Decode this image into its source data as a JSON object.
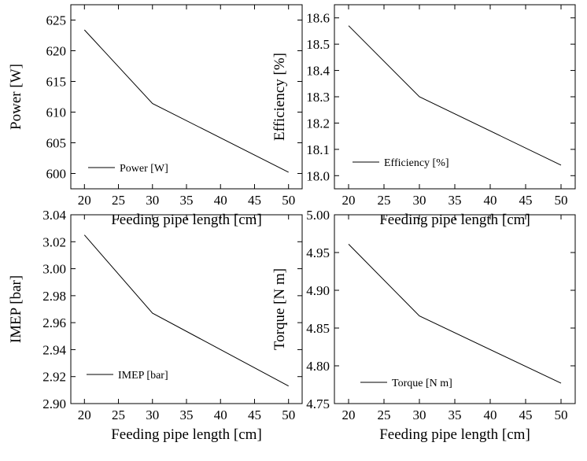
{
  "chart_data": [
    {
      "type": "line",
      "title": "",
      "xlabel": "Feeding pipe length [cm]",
      "ylabel": "Power [W]",
      "legend": "Power [W]",
      "legend_position": "bottom-left",
      "xlim": [
        18,
        52
      ],
      "ylim": [
        597.5,
        627.5
      ],
      "xticks": [
        20,
        25,
        30,
        35,
        40,
        45,
        50
      ],
      "yticks": [
        600,
        605,
        610,
        615,
        620,
        625
      ],
      "x": [
        20,
        30,
        50
      ],
      "series": [
        {
          "name": "Power [W]",
          "values": [
            623.4,
            611.4,
            600.2
          ]
        }
      ]
    },
    {
      "type": "line",
      "title": "",
      "xlabel": "Feeding pipe length [cm]",
      "ylabel": "Efficiency [%]",
      "legend": "Efficiency [%]",
      "legend_position": "bottom-left",
      "xlim": [
        18,
        52
      ],
      "ylim": [
        17.95,
        18.65
      ],
      "xticks": [
        20,
        25,
        30,
        35,
        40,
        45,
        50
      ],
      "yticks": [
        "18.0",
        "18.1",
        "18.2",
        "18.3",
        "18.4",
        "18.5",
        "18.6"
      ],
      "x": [
        20,
        30,
        50
      ],
      "series": [
        {
          "name": "Efficiency [%]",
          "values": [
            18.57,
            18.3,
            18.04
          ]
        }
      ]
    },
    {
      "type": "line",
      "title": "",
      "xlabel": "Feeding pipe length [cm]",
      "ylabel": "IMEP [bar]",
      "legend": "IMEP [bar]",
      "legend_position": "bottom-left",
      "xlim": [
        18,
        52
      ],
      "ylim": [
        2.9,
        3.04
      ],
      "xticks": [
        20,
        25,
        30,
        35,
        40,
        45,
        50
      ],
      "yticks": [
        "2.90",
        "2.92",
        "2.94",
        "2.96",
        "2.98",
        "3.00",
        "3.02",
        "3.04"
      ],
      "x": [
        20,
        30,
        50
      ],
      "series": [
        {
          "name": "IMEP [bar]",
          "values": [
            3.025,
            2.967,
            2.913
          ]
        }
      ]
    },
    {
      "type": "line",
      "title": "",
      "xlabel": "Feeding pipe length [cm]",
      "ylabel": "Torque  [N m]",
      "legend": "Torque  [N m]",
      "legend_position": "bottom-left",
      "xlim": [
        18,
        52
      ],
      "ylim": [
        4.75,
        5.0
      ],
      "xticks": [
        20,
        25,
        30,
        35,
        40,
        45,
        50
      ],
      "yticks": [
        "4.75",
        "4.80",
        "4.85",
        "4.90",
        "4.95",
        "5.00"
      ],
      "x": [
        20,
        30,
        50
      ],
      "series": [
        {
          "name": "Torque  [N m]",
          "values": [
            4.961,
            4.866,
            4.777
          ]
        }
      ]
    }
  ]
}
